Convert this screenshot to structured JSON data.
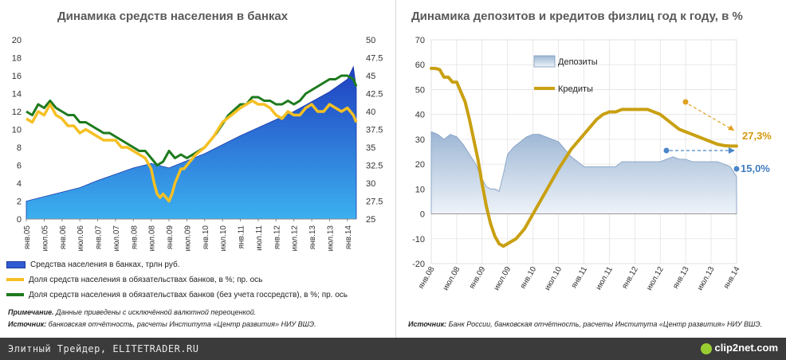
{
  "chart_data": [
    {
      "type": "area",
      "title": "Динамика средств населения в банках",
      "ylim_left": [
        0,
        20
      ],
      "left_ticks": [
        "0",
        "2",
        "4",
        "6",
        "8",
        "10",
        "12",
        "14",
        "16",
        "18",
        "20"
      ],
      "ylim_right": [
        25,
        50
      ],
      "right_ticks": [
        "25",
        "27.5",
        "30",
        "32.5",
        "35",
        "37.5",
        "40",
        "42.5",
        "45",
        "47.5",
        "50"
      ],
      "x_labels": [
        "янв.05",
        "июл.05",
        "янв.06",
        "июл.06",
        "янв.07",
        "июл.07",
        "янв.08",
        "июл.08",
        "янв.09",
        "июл.09",
        "янв.10",
        "июл.10",
        "янв.11",
        "июл.11",
        "янв.12",
        "июл.12",
        "янв.13",
        "июл.13",
        "янв.14"
      ],
      "series": [
        {
          "name": "Средства населения в банках,  трлн руб.",
          "axis": "left",
          "color": "#2f5bd3",
          "x": [
            0,
            6,
            12,
            18,
            24,
            30,
            36,
            42,
            48,
            54,
            60,
            66,
            72,
            78,
            84,
            90,
            96,
            102,
            108,
            110,
            111
          ],
          "values": [
            2.0,
            2.5,
            3.0,
            3.5,
            4.3,
            5.0,
            5.7,
            6.2,
            5.7,
            6.5,
            7.3,
            8.3,
            9.3,
            10.2,
            11.1,
            12.0,
            13.1,
            14.2,
            15.6,
            17.0,
            14.6
          ]
        },
        {
          "name": "Доля средств населения в обязательствах банков, в %;  пр. ось",
          "axis": "right",
          "color": "#f5c023",
          "x": [
            0,
            2,
            4,
            6,
            8,
            10,
            12,
            14,
            16,
            18,
            20,
            22,
            24,
            26,
            28,
            30,
            32,
            34,
            36,
            38,
            40,
            42,
            43,
            44,
            45,
            46,
            47,
            48,
            49,
            50,
            51,
            52,
            53,
            54,
            55,
            57,
            60,
            63,
            66,
            69,
            72,
            74,
            76,
            78,
            80,
            82,
            84,
            86,
            88,
            90,
            92,
            94,
            96,
            98,
            100,
            102,
            104,
            106,
            108,
            110,
            111
          ],
          "values": [
            39.0,
            38.5,
            40.0,
            39.5,
            41.0,
            39.5,
            39.0,
            38.0,
            38.0,
            37.0,
            37.5,
            37.0,
            36.5,
            36.0,
            36.0,
            36.0,
            35.0,
            35.0,
            34.5,
            34.0,
            33.5,
            32.0,
            30.0,
            28.5,
            28.0,
            28.5,
            28.0,
            27.5,
            28.5,
            30.0,
            31.0,
            32.0,
            32.0,
            32.5,
            33.0,
            34.0,
            35.0,
            36.5,
            38.5,
            39.5,
            40.5,
            41.0,
            41.5,
            41.0,
            41.0,
            40.5,
            39.5,
            39.0,
            40.0,
            39.5,
            39.5,
            40.5,
            41.0,
            40.0,
            40.0,
            41.0,
            40.5,
            40.0,
            40.5,
            39.5,
            38.5
          ]
        },
        {
          "name": "Доля средств населения в обязательствах банков (без учета госсредств), в %;  пр. ось",
          "axis": "right",
          "color": "#1e7a1e",
          "x": [
            0,
            2,
            4,
            6,
            8,
            10,
            12,
            14,
            16,
            18,
            20,
            22,
            24,
            26,
            28,
            30,
            32,
            34,
            36,
            38,
            40,
            42,
            44,
            46,
            48,
            50,
            52,
            54,
            56,
            60,
            64,
            68,
            72,
            74,
            76,
            78,
            80,
            82,
            84,
            86,
            88,
            90,
            92,
            94,
            96,
            98,
            100,
            102,
            104,
            106,
            108,
            110,
            111
          ],
          "values": [
            40.0,
            39.5,
            41.0,
            40.5,
            41.5,
            40.5,
            40.0,
            39.5,
            39.5,
            38.5,
            38.5,
            38.0,
            37.5,
            37.0,
            37.0,
            36.5,
            36.0,
            35.5,
            35.0,
            34.5,
            34.5,
            33.5,
            32.5,
            33.0,
            34.5,
            33.5,
            34.0,
            33.5,
            34.0,
            35.0,
            37.0,
            39.5,
            41.0,
            41.0,
            42.0,
            42.0,
            41.5,
            41.5,
            41.0,
            41.0,
            41.5,
            41.0,
            41.5,
            42.5,
            43.0,
            43.5,
            44.0,
            44.5,
            44.5,
            45.0,
            45.0,
            44.5,
            43.5
          ]
        }
      ]
    },
    {
      "type": "line",
      "title": "Динамика депозитов и кредитов физлиц год к году, в %",
      "ylim": [
        -20,
        70
      ],
      "y_ticks": [
        "-20",
        "-10",
        "0",
        "10",
        "20",
        "30",
        "40",
        "50",
        "60",
        "70"
      ],
      "x_labels": [
        "янв.08",
        "июл.08",
        "янв.09",
        "июл.09",
        "янв.10",
        "июл.10",
        "янв.11",
        "июл.11",
        "янв.12",
        "июл.12",
        "янв.13",
        "июл.13",
        "янв.14"
      ],
      "series": [
        {
          "name": "Депозиты",
          "type": "area",
          "color": "#a8bfd8",
          "x": [
            0,
            3,
            6,
            9,
            12,
            15,
            18,
            21,
            24,
            26,
            28,
            30,
            32,
            34,
            36,
            39,
            42,
            45,
            48,
            51,
            54,
            57,
            60,
            63,
            66,
            69,
            72,
            75,
            78,
            81,
            84,
            87,
            90,
            93,
            96,
            99,
            102,
            105,
            108,
            111,
            114,
            117,
            120,
            123,
            126,
            129,
            132,
            135,
            138,
            141,
            144
          ],
          "values": [
            33,
            32,
            30,
            32,
            31,
            28,
            24,
            20,
            14,
            11,
            10,
            10,
            9,
            16,
            24,
            27,
            29,
            31,
            32,
            32,
            31,
            30,
            29,
            26,
            23,
            21,
            19,
            19,
            19,
            19,
            19,
            19,
            21,
            21,
            21,
            21,
            21,
            21,
            21,
            22,
            23,
            22,
            22,
            21,
            21,
            21,
            21,
            21,
            20,
            19,
            15
          ]
        },
        {
          "name": "Кредиты",
          "color": "#c9a011",
          "x": [
            0,
            2,
            4,
            6,
            8,
            10,
            12,
            14,
            16,
            18,
            20,
            22,
            24,
            26,
            28,
            30,
            32,
            34,
            36,
            38,
            40,
            42,
            44,
            46,
            48,
            50,
            52,
            54,
            56,
            58,
            60,
            63,
            66,
            69,
            72,
            75,
            78,
            81,
            84,
            87,
            90,
            93,
            96,
            99,
            102,
            105,
            108,
            111,
            114,
            117,
            120,
            123,
            126,
            129,
            132,
            135,
            138,
            141,
            144
          ],
          "values": [
            58.5,
            58.5,
            58,
            55,
            55,
            53,
            53,
            49,
            45,
            38,
            30,
            22,
            12,
            3,
            -4,
            -9,
            -12,
            -13,
            -12,
            -11,
            -10,
            -8,
            -6,
            -3,
            0,
            3,
            6,
            9,
            12,
            15,
            18,
            22,
            26,
            29,
            32,
            35,
            38,
            40,
            41,
            41,
            42,
            42,
            42,
            42,
            42,
            41,
            40,
            38,
            36,
            34,
            33,
            32,
            31,
            30,
            29,
            28,
            27.5,
            27.3,
            27.3
          ]
        }
      ],
      "legend": [
        "Депозиты",
        "Кредиты"
      ],
      "annotations": [
        "27,3%",
        "15,0%"
      ]
    }
  ],
  "legend_left": [
    {
      "label": "Средства населения в банках,  трлн руб.",
      "color": "#2f5bd3"
    },
    {
      "label": "Доля средств населения в обязательствах банков, в %;  пр. ось",
      "color": "#f5c023"
    },
    {
      "label": "Доля средств населения в обязательствах банков (без учета госсредств), в %;  пр. ось",
      "color": "#1e7a1e"
    }
  ],
  "notes": {
    "left_note_label": "Примечание.",
    "left_note_text": " Данные приведены с исключённой валютной переоценкой.",
    "left_source_label": "Источник:",
    "left_source_text": " банковская отчётность, расчеты Института «Центр развития» НИУ ВШЭ.",
    "right_source_label": "Источник:",
    "right_source_text": " Банк России, банковская отчётность, расчеты Института «Центр развития» НИУ ВШЭ."
  },
  "footer": {
    "site": "Элитный Трейдер, ELITETRADER.RU",
    "logo": "clip2net.com"
  }
}
